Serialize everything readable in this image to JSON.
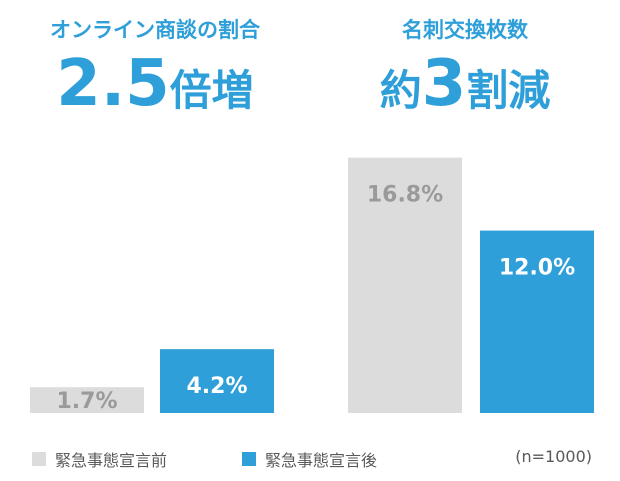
{
  "panels": [
    {
      "subtitle": "オンライン商談の割合",
      "headline_num": "2.5",
      "headline_rest": "倍増"
    },
    {
      "subtitle": "名刺交換枚数",
      "headline_pre": "約",
      "headline_num": "3",
      "headline_rest": "割減"
    }
  ],
  "legend": {
    "before": "緊急事態宣言前",
    "after": "緊急事態宣言後",
    "note": "(n=1000)"
  },
  "colors": {
    "before": "#dcdcdc",
    "after": "#2f9fd9",
    "before_label": "#9a9a9a",
    "after_label": "#ffffff"
  },
  "chart_data": [
    {
      "type": "bar",
      "categories": [
        "緊急事態宣言前",
        "緊急事態宣言後"
      ],
      "values": [
        1.7,
        4.2
      ],
      "labels": [
        "1.7%",
        "4.2%"
      ],
      "title": "オンライン商談の割合",
      "unit": "%"
    },
    {
      "type": "bar",
      "categories": [
        "緊急事態宣言前",
        "緊急事態宣言後"
      ],
      "values": [
        16.8,
        12.0
      ],
      "labels": [
        "16.8%",
        "12.0%"
      ],
      "title": "名刺交換枚数",
      "unit": "%"
    }
  ]
}
